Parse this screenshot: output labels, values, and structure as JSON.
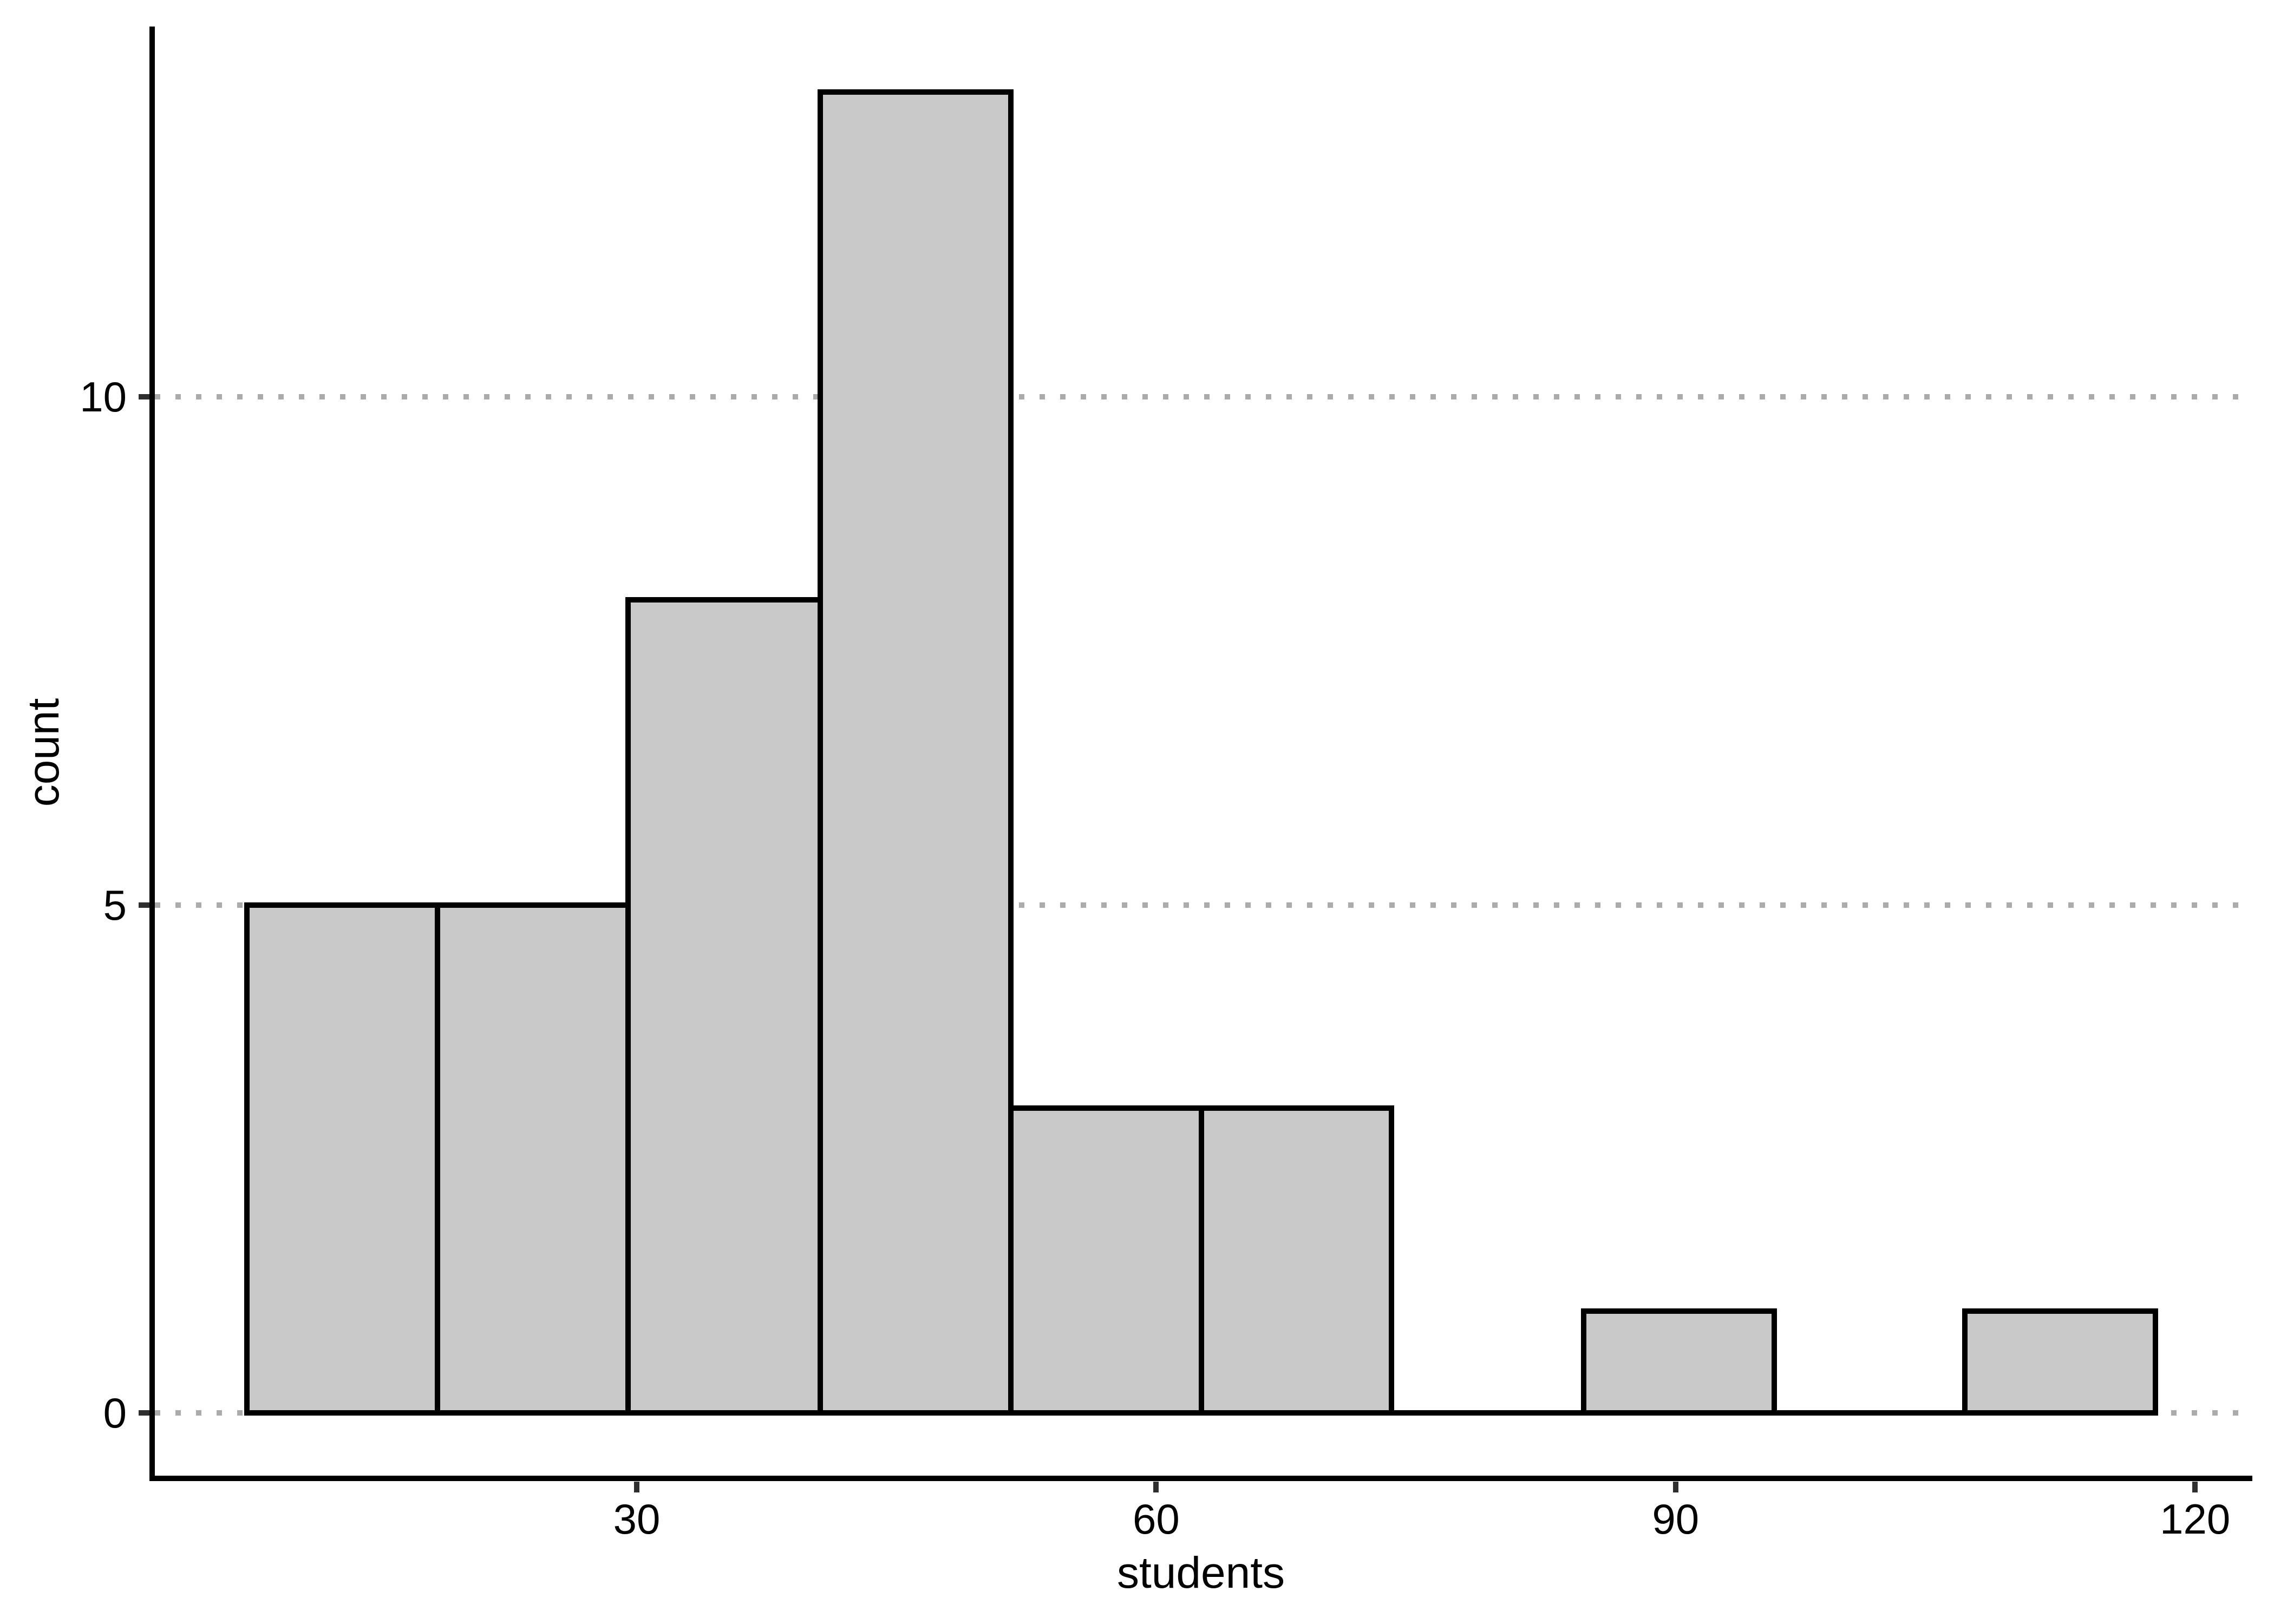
{
  "figure": {
    "kind": "histogram",
    "background": "#ffffff"
  },
  "chart_data": {
    "type": "bar",
    "subtype": "histogram",
    "title": "",
    "xlabel": "students",
    "ylabel": "count",
    "x_ticks": [
      30,
      60,
      90,
      120
    ],
    "x_tick_labels": [
      "30",
      "60",
      "90",
      "120"
    ],
    "y_ticks": [
      0,
      5,
      10
    ],
    "y_tick_labels": [
      "0",
      "5",
      "10"
    ],
    "xlim": [
      1.9,
      123.3
    ],
    "ylim": [
      -0.7,
      13.7
    ],
    "bin_edges": [
      7.5,
      18.5,
      29.5,
      40.6,
      51.6,
      62.6,
      73.6,
      84.7,
      95.7,
      106.7,
      117.7
    ],
    "counts": [
      5,
      5,
      8,
      13,
      3,
      3,
      0,
      1,
      0,
      1
    ],
    "total_observations": 39,
    "grid": {
      "orientation": "horizontal",
      "style": "dotted",
      "at": [
        0,
        5,
        10
      ]
    },
    "legend": "none",
    "colors": {
      "bar_fill": "#c9c9c9",
      "bar_stroke": "#000000",
      "grid_dots": "#ababab",
      "axis_line": "#000000",
      "tick_mark": "#2e2e2e",
      "text": "#000000",
      "background": "#ffffff"
    }
  }
}
